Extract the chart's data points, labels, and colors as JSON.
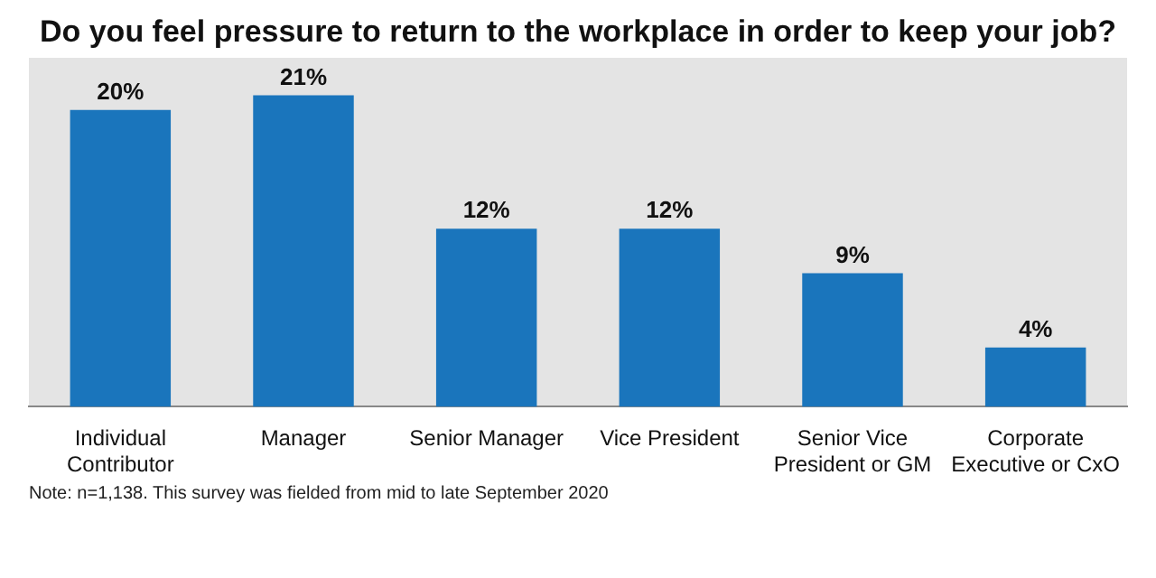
{
  "chart_data": {
    "type": "bar",
    "title": "Do you feel pressure to return to the workplace in order to keep your job?",
    "categories": [
      "Individual Contributor",
      "Manager",
      "Senior Manager",
      "Vice President",
      "Senior Vice President or GM",
      "Corporate Executive or CxO"
    ],
    "values": [
      20,
      21,
      12,
      12,
      9,
      4
    ],
    "value_labels": [
      "20%",
      "21%",
      "12%",
      "12%",
      "9%",
      "4%"
    ],
    "color": "#1a75bc",
    "legend": false,
    "annotations": [
      "Note: n=1,138. This survey was fielded from mid to late September 2020"
    ]
  }
}
